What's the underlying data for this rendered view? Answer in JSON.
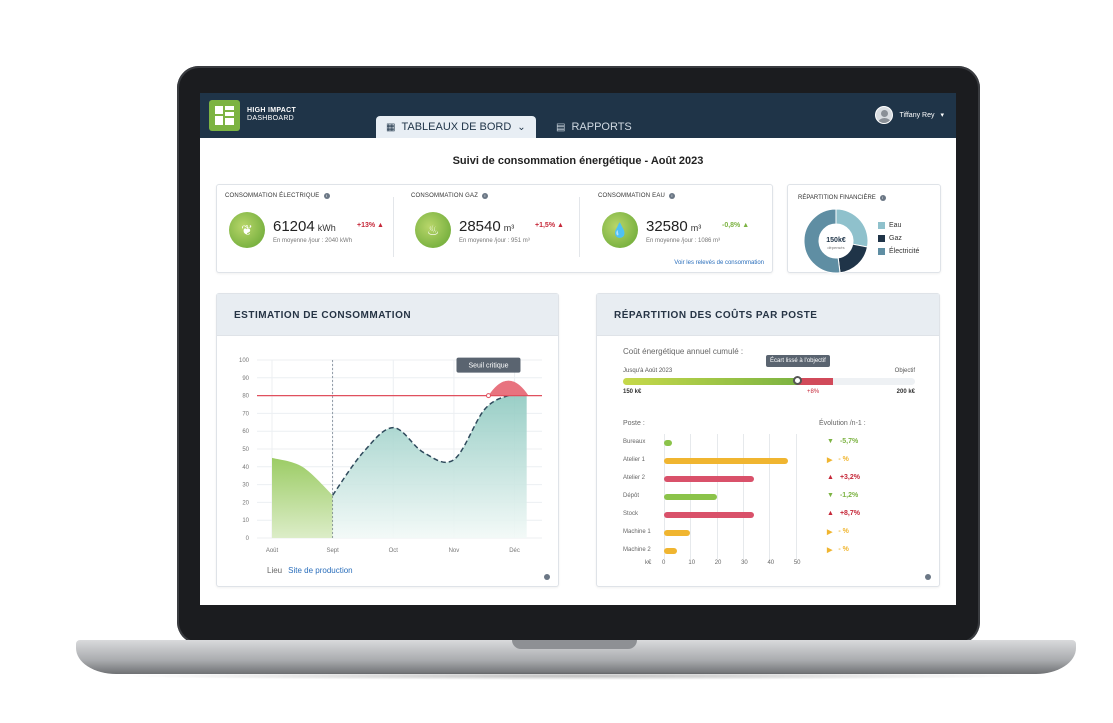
{
  "header": {
    "logo_line1": "HIGH IMPACT",
    "logo_line2": "DASHBOARD",
    "tabs": [
      {
        "label": "TABLEAUX DE BORD",
        "icon": "grid-icon",
        "active": true
      },
      {
        "label": "RAPPORTS",
        "icon": "document-icon",
        "active": false
      }
    ],
    "user_name": "Tiffany Rey"
  },
  "page_title": "Suivi de consommation énergétique - Août 2023",
  "kpis": [
    {
      "title": "CONSOMMATION ÉLECTRIQUE",
      "value": "61204",
      "unit": "kWh",
      "delta": "+13%",
      "delta_color": "#c62839",
      "avg": "En moyenne /jour : 2040 kWh",
      "icon": "leaf-icon"
    },
    {
      "title": "CONSOMMATION GAZ",
      "value": "28540",
      "unit": "m³",
      "delta": "+1,5%",
      "delta_color": "#c62839",
      "avg": "En moyenne /jour : 951 m³",
      "icon": "flame-icon"
    },
    {
      "title": "CONSOMMATION EAU",
      "value": "32580",
      "unit": "m³",
      "delta": "-0,8%",
      "delta_color": "#7cb342",
      "avg": "En moyenne /jour : 1086 m³",
      "icon": "drop-icon"
    }
  ],
  "kpi_link": "Voir les relevés de consommation",
  "finance": {
    "title": "RÉPARTITION FINANCIÈRE",
    "center_value": "150k€",
    "center_sub": "dépensés",
    "legend": [
      {
        "name": "Eau",
        "color": "#8fc1cc"
      },
      {
        "name": "Gaz",
        "color": "#1f3448"
      },
      {
        "name": "Électricité",
        "color": "#5f8ea3"
      }
    ]
  },
  "estimation": {
    "title": "ESTIMATION DE CONSOMMATION",
    "threshold_label": "Seuil critique",
    "lieu_label": "Lieu",
    "lieu_value": "Site de production"
  },
  "costs": {
    "title": "RÉPARTITION DES COÛTS PAR POSTE",
    "cumul_label": "Coût énergétique annuel cumulé :",
    "progress_left": "Jusqu'à Août 2023",
    "progress_right": "Objectif",
    "tooltip": "Écart lissé à l'objectif",
    "val_left": "150 k€",
    "val_mid": "+8%",
    "val_right": "200 k€",
    "progress_fraction": 0.6,
    "over_fraction": 0.08,
    "col_poste": "Poste :",
    "col_evo": "Évolution /n-1 :",
    "xticks_label": "k€",
    "xticks": [
      "0",
      "10",
      "20",
      "30",
      "40",
      "50"
    ]
  },
  "chart_data": [
    {
      "type": "area",
      "title": "ESTIMATION DE CONSOMMATION",
      "categories": [
        "Août",
        "Sept",
        "Oct",
        "Nov",
        "Déc"
      ],
      "yticks": [
        "0",
        "10",
        "20",
        "30",
        "40",
        "50",
        "60",
        "70",
        "80",
        "90",
        "100"
      ],
      "ylim": [
        0,
        100
      ],
      "threshold": 80,
      "series": [
        {
          "points": [
            [
              0,
              45
            ],
            [
              0.5,
              40
            ],
            [
              1,
              24
            ]
          ]
        },
        {
          "points": [
            [
              1,
              24
            ],
            [
              1.5,
              48
            ],
            [
              2,
              62
            ],
            [
              2.5,
              48
            ],
            [
              3,
              44
            ],
            [
              3.5,
              72
            ],
            [
              3.9,
              80
            ],
            [
              4.2,
              80
            ]
          ]
        }
      ]
    },
    {
      "type": "pie",
      "title": "RÉPARTITION FINANCIÈRE",
      "categories": [
        "Eau",
        "Gaz",
        "Électricité"
      ],
      "values": [
        28,
        20,
        52
      ]
    },
    {
      "type": "bar",
      "title": "RÉPARTITION DES COÛTS PAR POSTE",
      "categories": [
        "Bureaux",
        "Atelier 1",
        "Atelier 2",
        "Dépôt",
        "Stock",
        "Machine 1",
        "Machine 2"
      ],
      "values": [
        3,
        47,
        34,
        20,
        34,
        10,
        5
      ],
      "colors": [
        "#8bc34a",
        "#f0b530",
        "#d9516a",
        "#8bc34a",
        "#d9516a",
        "#f0b530",
        "#f0b530"
      ],
      "evolution": [
        {
          "text": "-5,7%",
          "dir": "down",
          "color": "#7cb342"
        },
        {
          "text": "- %",
          "dir": "flat",
          "color": "#f0b530"
        },
        {
          "text": "+3,2%",
          "dir": "up",
          "color": "#c62839"
        },
        {
          "text": "-1,2%",
          "dir": "down",
          "color": "#7cb342"
        },
        {
          "text": "+8,7%",
          "dir": "up",
          "color": "#c62839"
        },
        {
          "text": "- %",
          "dir": "flat",
          "color": "#f0b530"
        },
        {
          "text": "- %",
          "dir": "flat",
          "color": "#f0b530"
        }
      ],
      "xlim": [
        0,
        55
      ]
    }
  ]
}
